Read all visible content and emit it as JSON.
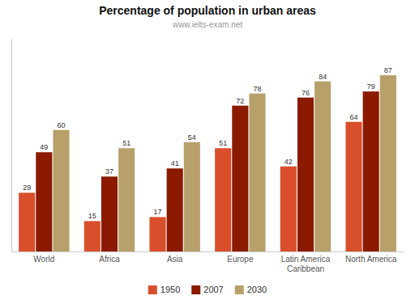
{
  "chart_data": {
    "type": "bar",
    "title": "Percentage of population in urban areas",
    "subtitle": "www.ielts-exam.net",
    "categories": [
      "World",
      "Africa",
      "Asia",
      "Europe",
      "Latin America\nCaribbean",
      "North America"
    ],
    "series": [
      {
        "name": "1950",
        "color": "#d94f2b",
        "values": [
          29,
          15,
          17,
          51,
          42,
          64
        ]
      },
      {
        "name": "2007",
        "color": "#8b1a00",
        "values": [
          49,
          37,
          41,
          72,
          76,
          79
        ]
      },
      {
        "name": "2030",
        "color": "#b8a06a",
        "values": [
          60,
          51,
          54,
          78,
          84,
          87
        ]
      }
    ],
    "ylim": [
      0,
      105
    ],
    "data_labels": true,
    "tick_labels": "x",
    "grid": false,
    "legend": "bottom"
  }
}
